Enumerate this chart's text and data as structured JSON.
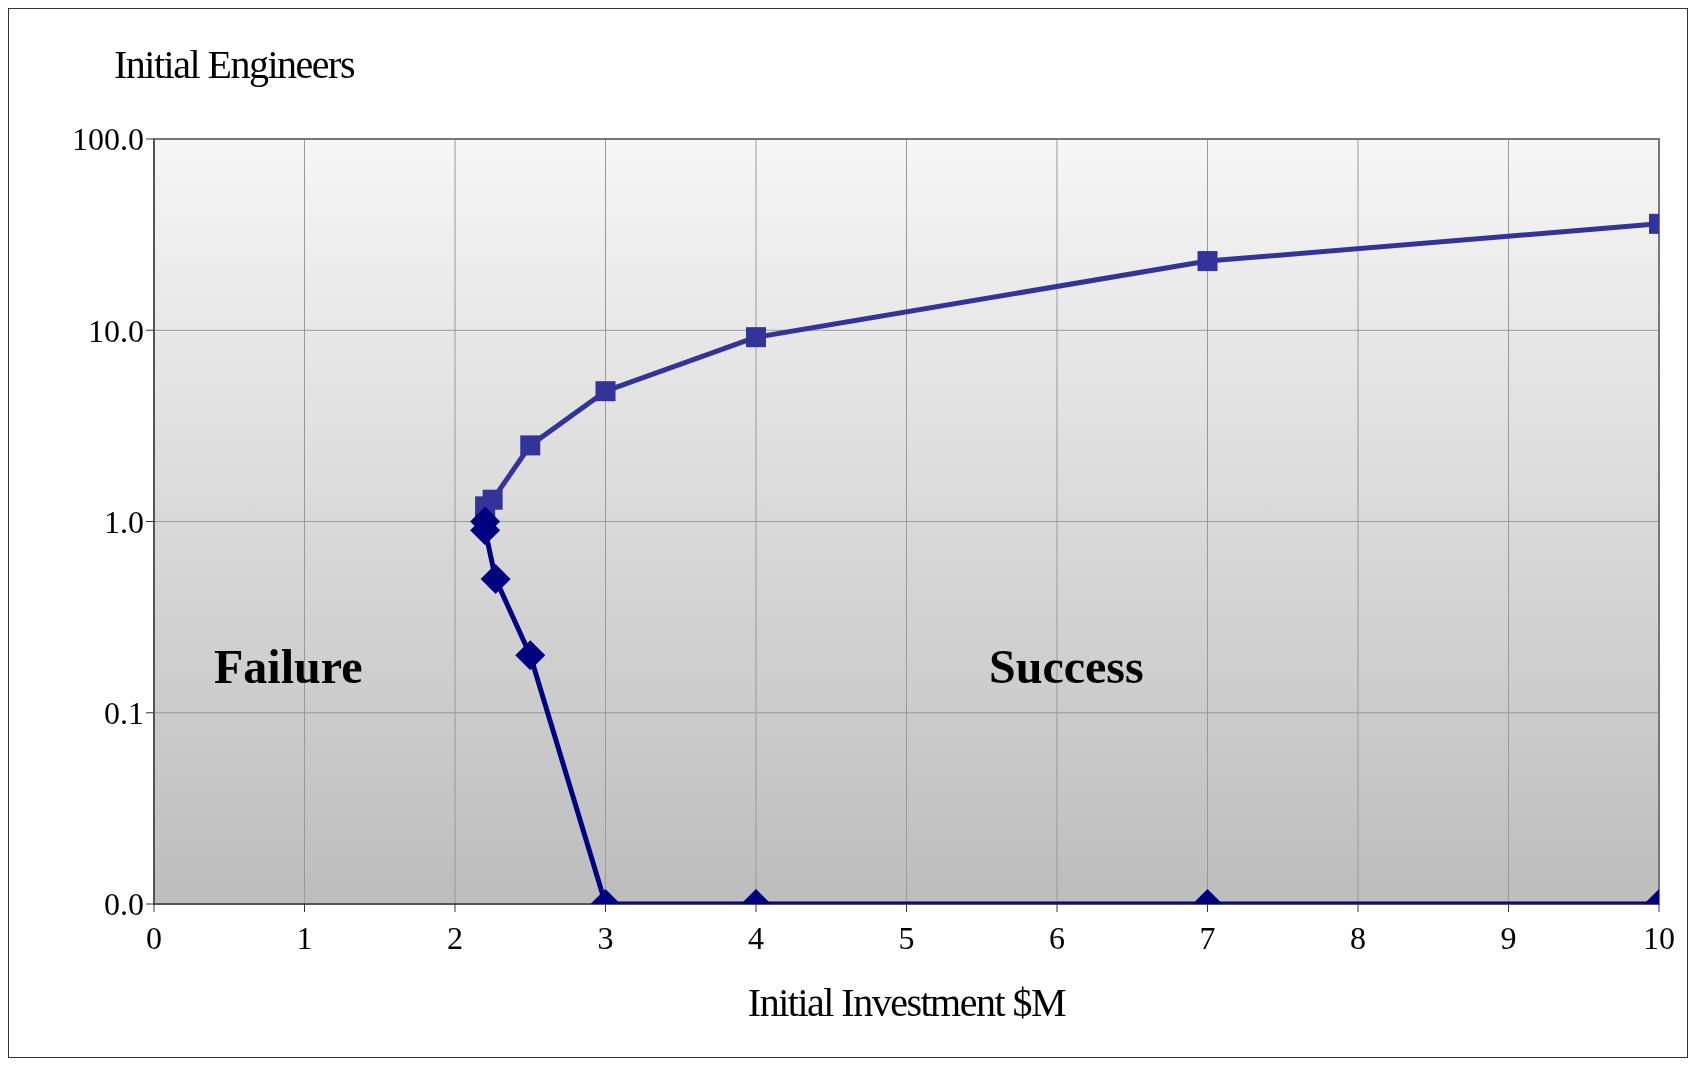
{
  "chart_data": {
    "type": "line",
    "ylabel": "Initial Engineers",
    "xlabel": "Initial Investment $M",
    "log": "y",
    "xlim": [
      0,
      10
    ],
    "xticks": [
      0,
      1,
      2,
      3,
      4,
      5,
      6,
      7,
      8,
      9,
      10
    ],
    "ylim": [
      0.01,
      100
    ],
    "yticks": [
      {
        "value": 0.01,
        "label": "0.0"
      },
      {
        "value": 0.1,
        "label": "0.1"
      },
      {
        "value": 1,
        "label": "1.0"
      },
      {
        "value": 10,
        "label": "10.0"
      },
      {
        "value": 100,
        "label": "100.0"
      }
    ],
    "grid": true,
    "line_style": "solid",
    "series": [
      {
        "color": "#333399",
        "marker": "square",
        "x": [
          2.2,
          2.2,
          2.25,
          2.5,
          3,
          4,
          7,
          10
        ],
        "values": [
          1.0,
          1.2,
          1.3,
          2.5,
          4.8,
          9.2,
          23,
          36
        ]
      },
      {
        "color": "#000080",
        "marker": "diamond",
        "x": [
          2.2,
          2.2,
          2.27,
          2.5,
          3,
          4,
          7,
          10
        ],
        "values": [
          1.0,
          0.9,
          0.5,
          0.2,
          0.01,
          0.01,
          0.01,
          0.01
        ]
      }
    ],
    "annotations": [
      "Failure",
      "Success"
    ]
  }
}
